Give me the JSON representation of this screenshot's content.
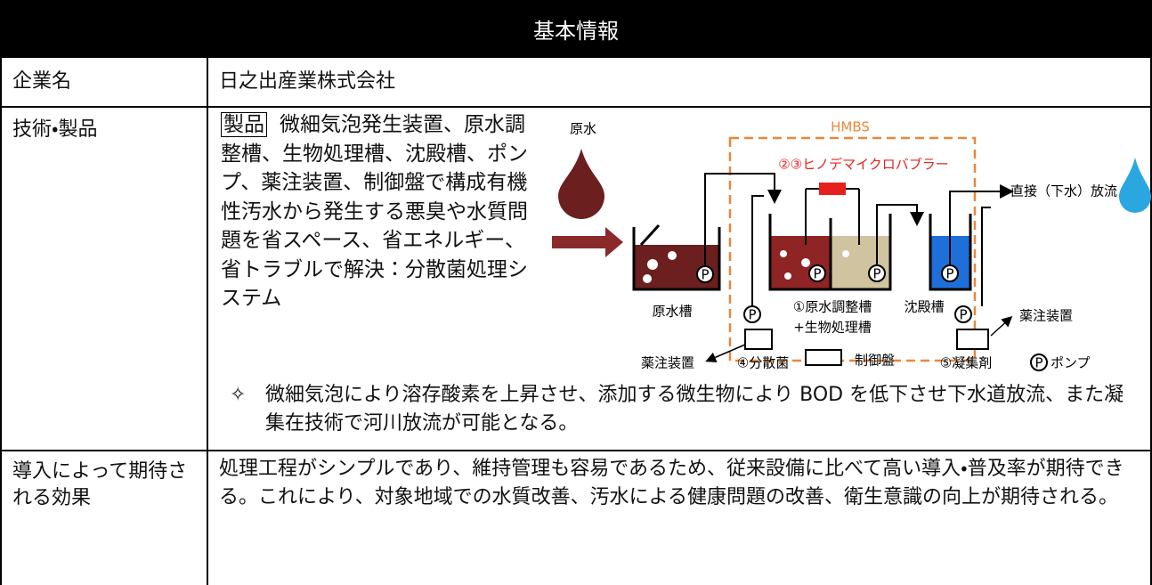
{
  "header": {
    "title": "基本情報"
  },
  "company": {
    "label": "企業名",
    "value": "日之出産業株式会社"
  },
  "technology": {
    "label": "技術・製品",
    "tag": "製品",
    "description": "微細気泡発生装置、原水調整槽、生物処理槽、沈殿槽、ポンプ、薬注装置、制御盤で構成有機性汚水から発生する悪臭や水質問題を省スペース、省エネルギー、省トラブルで解決：分散菌処理システム",
    "bullet": "✧",
    "note": "微細気泡により溶存酸素を上昇させ、添加する微生物により BOD を低下させ下水道放流、また凝集在技術で河川放流が可能となる。"
  },
  "diagram": {
    "system": "HMBS",
    "raw_water": "原水",
    "bubbler": "②③ヒノデマイクロバブラー",
    "discharge": "直接（下水）放流",
    "raw_tank": "原水槽",
    "adjust_tank": "①原水調整槽",
    "bio_tank": "+生物処理槽",
    "settling_tank": "沈殿槽",
    "dosing_left": "薬注装置",
    "dosing_right": "薬注装置",
    "bacteria": "④分散菌",
    "control_panel": "制御盤",
    "coagulant": "⑤凝集剤",
    "pump_symbol": "P",
    "pump": "ポンプ"
  },
  "effects": {
    "label": "導入によって期待される効果",
    "value": "処理工程がシンプルであり、維持管理も容易であるため、従来設備に比べて高い導入・普及率が期待できる。これにより、対象地域での水質改善、汚水による健康問題の改善、衛生意識の向上が期待される。"
  }
}
